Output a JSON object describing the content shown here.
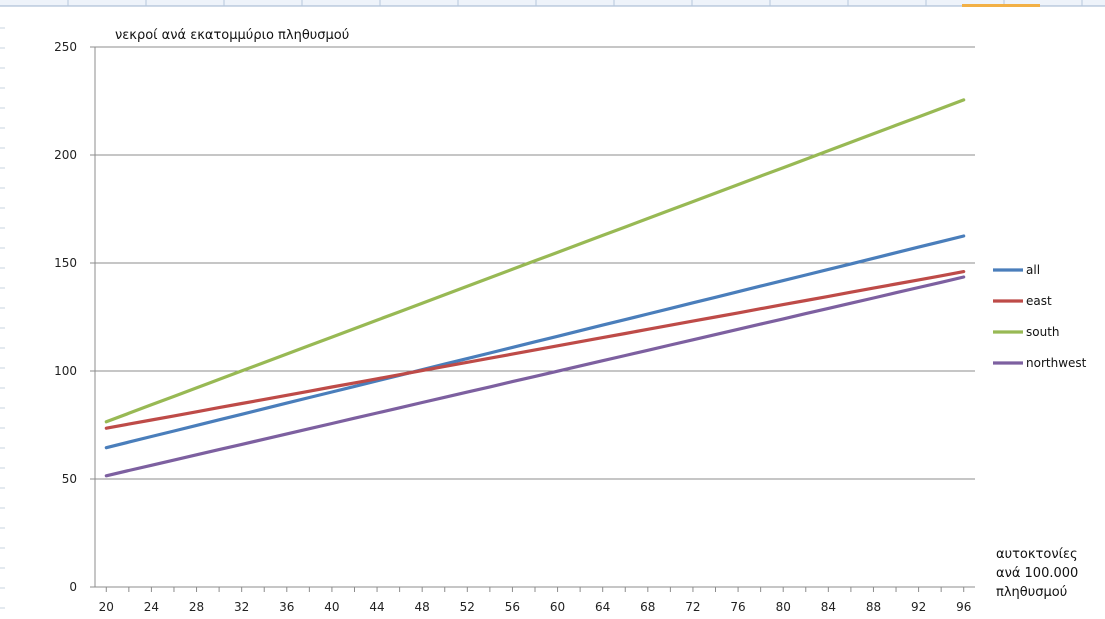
{
  "chart_data": {
    "type": "line",
    "ylabel": "νεκροί ανά εκατομμύριο πληθυσμού",
    "xlabel_lines": [
      "αυτοκτονίες",
      "ανά 100.000",
      "πληθυσμού"
    ],
    "x": [
      20,
      22,
      24,
      26,
      28,
      30,
      32,
      34,
      36,
      38,
      40,
      42,
      44,
      46,
      48,
      50,
      52,
      54,
      56,
      58,
      60,
      62,
      64,
      66,
      68,
      70,
      72,
      74,
      76,
      78,
      80,
      82,
      84,
      86,
      88,
      90,
      92,
      94,
      96
    ],
    "x_ticks": [
      20,
      24,
      28,
      32,
      36,
      40,
      44,
      48,
      52,
      56,
      60,
      64,
      68,
      72,
      76,
      80,
      84,
      88,
      92,
      96
    ],
    "y_ticks": [
      0,
      50,
      100,
      150,
      200,
      250
    ],
    "ylim": [
      0,
      250
    ],
    "grid": "horizontal",
    "legend_position": "right",
    "series": [
      {
        "name": "all",
        "color": "#4a7ebb",
        "start": 64.5,
        "end": 162.5
      },
      {
        "name": "east",
        "color": "#be4b48",
        "start": 73.5,
        "end": 146
      },
      {
        "name": "south",
        "color": "#98b954",
        "start": 76.5,
        "end": 225.5
      },
      {
        "name": "northwest",
        "color": "#7d60a0",
        "start": 51.5,
        "end": 143.5
      }
    ]
  }
}
